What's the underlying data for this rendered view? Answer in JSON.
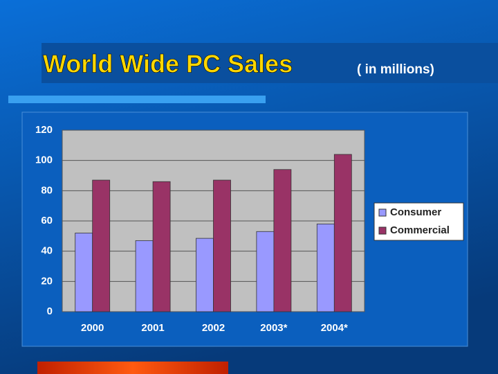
{
  "chart_data": {
    "type": "bar",
    "title": "World Wide PC Sales",
    "subtitle": "( in millions)",
    "categories": [
      "2000",
      "2001",
      "2002",
      "2003*",
      "2004*"
    ],
    "series": [
      {
        "name": "Consumer",
        "color": "#9999ff",
        "values": [
          52,
          47,
          48.5,
          53,
          58
        ]
      },
      {
        "name": "Commercial",
        "color": "#993366",
        "values": [
          87,
          86,
          87,
          94,
          104
        ]
      }
    ],
    "ylim": [
      0,
      120
    ],
    "yticks": [
      0,
      20,
      40,
      60,
      80,
      100,
      120
    ],
    "grid": true,
    "legend": "right"
  }
}
